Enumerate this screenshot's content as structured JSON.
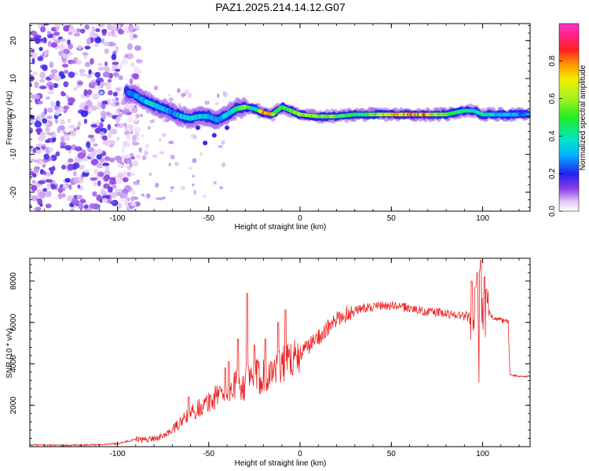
{
  "figure_title": "PAZ1.2025.214.14.12.G07",
  "colorbar": {
    "label": "Normalized spectral amplitude",
    "ticks": [
      "0.0",
      "0.2",
      "0.4",
      "0.6",
      "0.8"
    ],
    "tick_values": [
      0.0,
      0.2,
      0.4,
      0.6,
      0.8
    ],
    "range": [
      0,
      1
    ],
    "colormap": "gist_ncar-like (white, purple, blue, cyan, green, yellow, orange, red, magenta)"
  },
  "chart_data": [
    {
      "type": "heatmap",
      "title": "",
      "xlabel": "Height of straight line (km)",
      "ylabel": "Frequency (Hz)",
      "xlim": [
        -148,
        126
      ],
      "ylim": [
        -25,
        24.5
      ],
      "xticks": [
        -100,
        -50,
        0,
        50,
        100
      ],
      "xtick_labels": [
        "-100",
        "-50",
        "0",
        "50",
        "100"
      ],
      "yticks": [
        -20,
        -10,
        0,
        10,
        20
      ],
      "ytick_labels": [
        "-20",
        "-10",
        "0",
        "10",
        "20"
      ],
      "description_of_ridge": "dominant frequency (Hz) vs height; noisy scatter below about -90 km",
      "ridge_height_km": [
        -95,
        -90,
        -85,
        -80,
        -75,
        -70,
        -65,
        -60,
        -55,
        -50,
        -45,
        -40,
        -35,
        -30,
        -25,
        -20,
        -15,
        -10,
        -5,
        0,
        10,
        20,
        30,
        40,
        50,
        60,
        70,
        80,
        90,
        95,
        100,
        110,
        120,
        125
      ],
      "ridge_frequency_hz": [
        6.5,
        5.5,
        4.0,
        3.0,
        2.0,
        1.0,
        0.0,
        -0.5,
        0.0,
        0.0,
        -1.0,
        0.5,
        2.0,
        2.5,
        2.0,
        1.0,
        0.5,
        2.5,
        1.5,
        0.5,
        0.0,
        0.0,
        0.5,
        0.5,
        0.5,
        0.5,
        0.5,
        0.5,
        1.5,
        1.5,
        0.5,
        0.5,
        0.5,
        0.5
      ],
      "ridge_amplitude": [
        0.25,
        0.3,
        0.35,
        0.4,
        0.35,
        0.3,
        0.35,
        0.4,
        0.4,
        0.35,
        0.3,
        0.35,
        0.45,
        0.65,
        0.35,
        0.85,
        0.7,
        0.5,
        0.6,
        0.65,
        0.6,
        0.55,
        0.45,
        0.55,
        0.7,
        0.85,
        0.8,
        0.55,
        0.5,
        0.4,
        0.45,
        0.35,
        0.3,
        0.3
      ]
    },
    {
      "type": "line",
      "title": "",
      "xlabel": "Height of straight line (km)",
      "ylabel": "SNR (10 * v/v)",
      "xlim": [
        -148,
        126
      ],
      "ylim": [
        0,
        9100
      ],
      "xticks": [
        -100,
        -50,
        0,
        50,
        100
      ],
      "xtick_labels": [
        "-100",
        "-50",
        "0",
        "50",
        "100"
      ],
      "yticks": [
        2000,
        4000,
        6000,
        8000
      ],
      "ytick_labels": [
        "2000",
        "4000",
        "6000",
        "8000"
      ],
      "color": "#ee2222",
      "x": [
        -148,
        -140,
        -130,
        -120,
        -110,
        -100,
        -95,
        -90,
        -85,
        -80,
        -75,
        -70,
        -65,
        -60,
        -55,
        -50,
        -45,
        -40,
        -35,
        -30,
        -25,
        -20,
        -15,
        -10,
        -5,
        0,
        5,
        10,
        15,
        20,
        25,
        30,
        35,
        40,
        45,
        50,
        55,
        60,
        65,
        70,
        75,
        80,
        85,
        90,
        95,
        100,
        105,
        110,
        114,
        115,
        116,
        120,
        126
      ],
      "y": [
        80,
        80,
        60,
        80,
        100,
        150,
        250,
        350,
        350,
        400,
        500,
        800,
        1200,
        1600,
        1900,
        2100,
        2500,
        2700,
        2900,
        3100,
        3300,
        3500,
        3700,
        4000,
        4200,
        4500,
        4900,
        5300,
        5700,
        6100,
        6400,
        6600,
        6700,
        6750,
        6800,
        6800,
        6750,
        6700,
        6600,
        6500,
        6500,
        6400,
        6400,
        6300,
        6400,
        6500,
        6300,
        6100,
        6000,
        3500,
        3450,
        3400,
        3400
      ],
      "spikes_x": [
        -61,
        -49,
        -44,
        -41,
        -39,
        -34,
        -29,
        -25,
        -19,
        -16,
        -12,
        -8,
        -2,
        94,
        96,
        97,
        98.5,
        99,
        101,
        102
      ],
      "spikes_y": [
        2400,
        2500,
        2900,
        3800,
        4100,
        5200,
        7400,
        4900,
        5200,
        4100,
        6000,
        6600,
        4400,
        8000,
        7700,
        8400,
        8500,
        9000,
        8200,
        7600
      ]
    }
  ]
}
